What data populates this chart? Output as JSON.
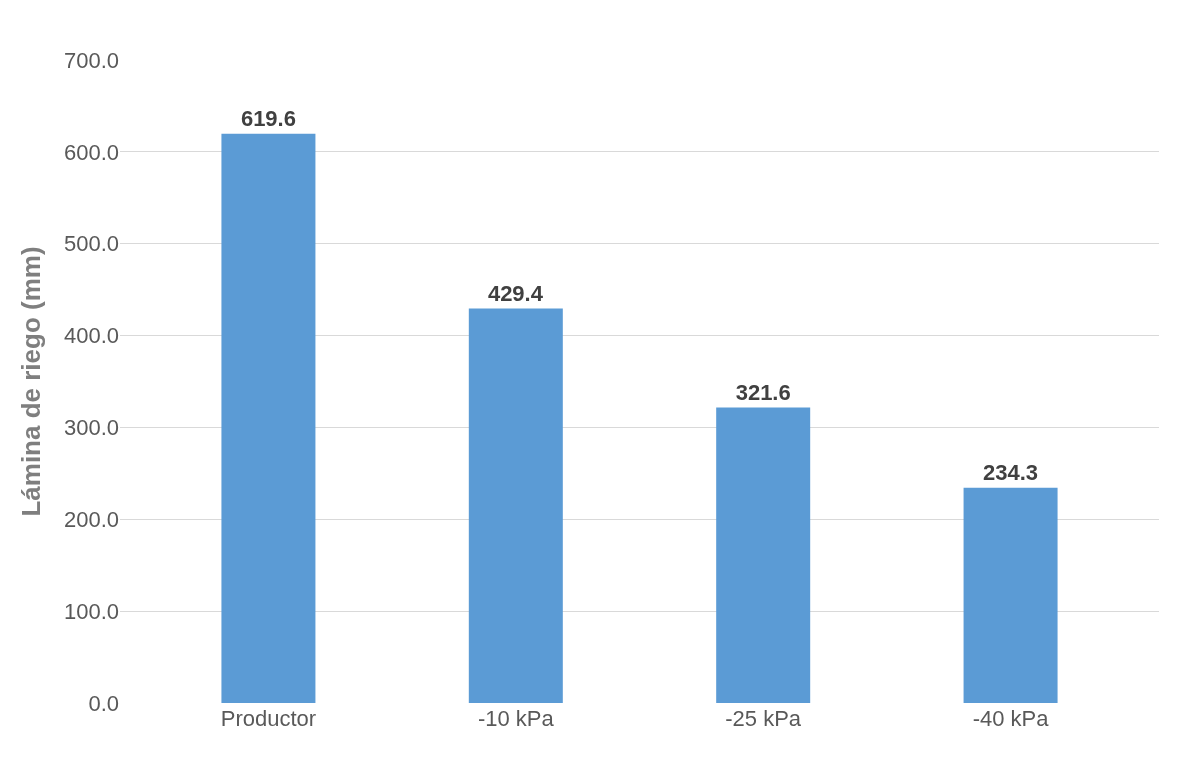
{
  "chart_data": {
    "type": "bar",
    "ylabel": "Lámina de riego (mm)",
    "categories": [
      "Productor",
      "-10 kPa",
      "-25 kPa",
      "-40 kPa"
    ],
    "values": [
      619.6,
      429.4,
      321.6,
      234.3
    ],
    "color": "#5b9bd5",
    "ylim": [
      0,
      700
    ],
    "yticks": [
      {
        "value": 0,
        "label": "0.0"
      },
      {
        "value": 100,
        "label": "100.0"
      },
      {
        "value": 200,
        "label": "200.0"
      },
      {
        "value": 300,
        "label": "300.0"
      },
      {
        "value": 400,
        "label": "400.0"
      },
      {
        "value": 500,
        "label": "500.0"
      },
      {
        "value": 600,
        "label": "600.0"
      },
      {
        "value": 700,
        "label": "700.0"
      }
    ],
    "grid": "y",
    "data_labels": true,
    "legend": false
  }
}
